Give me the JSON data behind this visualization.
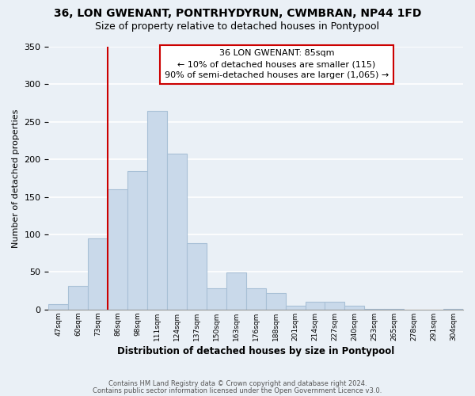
{
  "title": "36, LON GWENANT, PONTRHYDYRUN, CWMBRAN, NP44 1FD",
  "subtitle": "Size of property relative to detached houses in Pontypool",
  "xlabel": "Distribution of detached houses by size in Pontypool",
  "ylabel": "Number of detached properties",
  "bar_color": "#c9d9ea",
  "bar_edge_color": "#a8c0d6",
  "categories": [
    "47sqm",
    "60sqm",
    "73sqm",
    "86sqm",
    "98sqm",
    "111sqm",
    "124sqm",
    "137sqm",
    "150sqm",
    "163sqm",
    "176sqm",
    "188sqm",
    "201sqm",
    "214sqm",
    "227sqm",
    "240sqm",
    "253sqm",
    "265sqm",
    "278sqm",
    "291sqm",
    "304sqm"
  ],
  "values": [
    7,
    32,
    95,
    160,
    184,
    265,
    208,
    89,
    28,
    49,
    28,
    22,
    5,
    10,
    10,
    5,
    1,
    1,
    0,
    0,
    1
  ],
  "ylim": [
    0,
    350
  ],
  "yticks": [
    0,
    50,
    100,
    150,
    200,
    250,
    300,
    350
  ],
  "vline_index": 3,
  "vline_color": "#cc0000",
  "annotation_title": "36 LON GWENANT: 85sqm",
  "annotation_line1": "← 10% of detached houses are smaller (115)",
  "annotation_line2": "90% of semi-detached houses are larger (1,065) →",
  "annotation_box_color": "#ffffff",
  "annotation_box_edge": "#cc0000",
  "footer1": "Contains HM Land Registry data © Crown copyright and database right 2024.",
  "footer2": "Contains public sector information licensed under the Open Government Licence v3.0.",
  "background_color": "#eaf0f6",
  "grid_color": "#ffffff",
  "title_fontsize": 10,
  "subtitle_fontsize": 9
}
